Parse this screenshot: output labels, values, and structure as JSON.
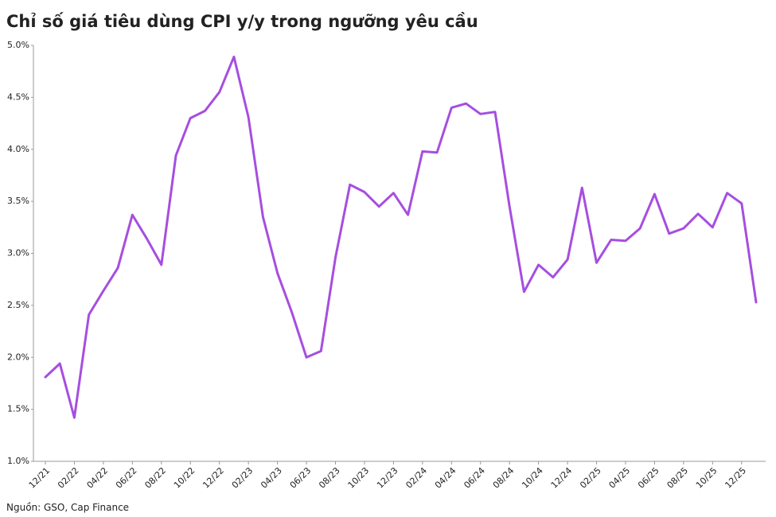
{
  "chart_data": {
    "type": "line",
    "title": "Chỉ số giá tiêu dùng CPI y/y trong ngưỡng yêu cầu",
    "source": "Nguồn: GSO, Cap Finance",
    "categories": [
      "12/21",
      null,
      "02/22",
      null,
      "04/22",
      null,
      "06/22",
      null,
      "08/22",
      null,
      "10/22",
      null,
      "12/22",
      null,
      "02/23",
      null,
      "04/23",
      null,
      "06/23",
      null,
      "08/23",
      null,
      "10/23",
      null,
      "12/23",
      null,
      "02/24",
      null,
      "04/24",
      null,
      "06/24",
      null,
      "08/24",
      null,
      "10/24",
      null,
      "12/24",
      null,
      "02/25",
      null,
      "04/25",
      null,
      "06/25",
      null,
      "08/25",
      null,
      "10/25",
      null,
      "12/25",
      null
    ],
    "series": [
      {
        "name": "CPI y/y",
        "color": "#a64ee0",
        "values": [
          1.81,
          1.94,
          1.42,
          2.41,
          2.64,
          2.86,
          3.37,
          3.14,
          2.89,
          3.94,
          4.3,
          4.37,
          4.55,
          4.89,
          4.31,
          3.35,
          2.81,
          2.43,
          2.0,
          2.06,
          2.96,
          3.66,
          3.59,
          3.45,
          3.58,
          3.37,
          3.98,
          3.97,
          4.4,
          4.44,
          4.34,
          4.36,
          3.45,
          2.63,
          2.89,
          2.77,
          2.94,
          3.63,
          2.91,
          3.13,
          3.12,
          3.24,
          3.57,
          3.19,
          3.24,
          3.38,
          3.25,
          3.58,
          3.48,
          2.53
        ]
      }
    ],
    "ylim": [
      1,
      5
    ],
    "yticks": [
      {
        "value": 1,
        "label": "1.0%"
      },
      {
        "value": 1.5,
        "label": "1.5%"
      },
      {
        "value": 2,
        "label": "2.0%"
      },
      {
        "value": 2.5,
        "label": "2.5%"
      },
      {
        "value": 3,
        "label": "3.0%"
      },
      {
        "value": 3.5,
        "label": "3.5%"
      },
      {
        "value": 4,
        "label": "4.0%"
      },
      {
        "value": 4.5,
        "label": "4.5%"
      },
      {
        "value": 5,
        "label": "5.0%"
      }
    ],
    "grid": false
  }
}
